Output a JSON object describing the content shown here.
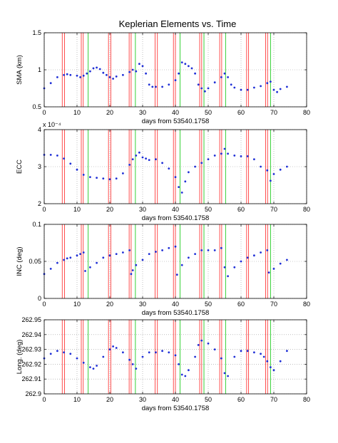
{
  "figure": {
    "title": "Keplerian Elements vs. Time"
  },
  "chart_data": [
    {
      "type": "scatter",
      "ylabel": "SMA (km)",
      "xlabel": "days from 53540.1758",
      "xlim": [
        0,
        80
      ],
      "ylim": [
        0.5,
        1.5
      ],
      "xticks": [
        "0",
        "10",
        "20",
        "30",
        "40",
        "50",
        "60",
        "70",
        "80"
      ],
      "yticks": [
        "0.5",
        "1",
        "1.5"
      ],
      "multiplier": "",
      "grid": true,
      "series": [
        {
          "color": "#1f2fd6",
          "x": [
            0,
            2,
            4,
            6,
            7,
            8,
            10,
            11,
            12,
            13,
            14,
            15,
            16,
            17,
            18,
            19,
            20,
            21,
            22,
            24,
            26,
            27,
            28,
            29,
            30,
            31,
            32,
            33,
            34,
            36,
            38,
            40,
            41,
            42,
            43,
            44,
            45,
            46,
            47,
            48,
            49,
            50,
            52,
            54,
            55,
            56,
            57,
            58,
            60,
            62,
            64,
            66,
            68,
            69,
            70,
            71,
            72,
            74
          ],
          "y": [
            0.75,
            0.82,
            0.9,
            0.93,
            0.94,
            0.93,
            0.92,
            0.9,
            0.92,
            0.95,
            0.98,
            1.02,
            1.03,
            1.01,
            0.96,
            0.93,
            0.9,
            0.88,
            0.91,
            0.93,
            0.97,
            1.0,
            0.98,
            1.08,
            1.05,
            0.95,
            0.8,
            0.77,
            0.77,
            0.77,
            0.8,
            0.86,
            0.95,
            1.1,
            1.08,
            1.05,
            1.02,
            0.95,
            0.8,
            0.75,
            0.71,
            0.75,
            0.83,
            0.9,
            0.95,
            0.9,
            0.8,
            0.76,
            0.73,
            0.73,
            0.76,
            0.78,
            0.82,
            0.84,
            0.73,
            0.7,
            0.74,
            0.77
          ]
        }
      ]
    },
    {
      "type": "scatter",
      "ylabel": "ECC",
      "xlabel": "days from 53540.1758",
      "xlim": [
        0,
        80
      ],
      "ylim": [
        2,
        4
      ],
      "xticks": [
        "0",
        "10",
        "20",
        "30",
        "40",
        "50",
        "60",
        "70",
        "80"
      ],
      "yticks": [
        "2",
        "3",
        "4"
      ],
      "multiplier": "x 10⁻⁴",
      "grid": true,
      "series": [
        {
          "color": "#1f2fd6",
          "x": [
            0,
            2,
            4,
            6,
            8,
            10,
            12,
            14,
            16,
            18,
            20,
            22,
            24,
            26,
            27,
            28,
            29,
            30,
            31,
            32,
            34,
            36,
            38,
            40,
            41,
            42,
            43,
            44,
            46,
            48,
            50,
            52,
            54,
            55,
            56,
            58,
            60,
            62,
            64,
            66,
            68,
            69,
            70,
            72,
            74
          ],
          "y": [
            3.32,
            3.32,
            3.3,
            3.22,
            3.08,
            2.92,
            2.78,
            2.72,
            2.7,
            2.68,
            2.66,
            2.68,
            2.82,
            3.05,
            3.2,
            3.3,
            3.38,
            3.25,
            3.22,
            3.18,
            3.2,
            3.1,
            2.95,
            2.72,
            2.45,
            2.3,
            2.6,
            2.85,
            3.0,
            3.1,
            3.2,
            3.3,
            3.35,
            3.48,
            3.35,
            3.3,
            3.28,
            3.28,
            3.2,
            3.0,
            2.9,
            2.62,
            2.8,
            2.92,
            3.0
          ]
        }
      ]
    },
    {
      "type": "scatter",
      "ylabel": "INC (deg)",
      "xlabel": "days from 53540.1758",
      "xlim": [
        0,
        80
      ],
      "ylim": [
        0,
        0.1
      ],
      "xticks": [
        "0",
        "10",
        "20",
        "30",
        "40",
        "50",
        "60",
        "70",
        "80"
      ],
      "yticks": [
        "0",
        "0.05",
        "0.1"
      ],
      "multiplier": "",
      "grid": true,
      "series": [
        {
          "color": "#1f2fd6",
          "x": [
            0,
            2,
            4,
            6,
            7,
            8,
            10,
            11,
            12,
            12.5,
            14,
            16,
            18,
            20,
            22,
            24,
            26,
            26.5,
            27,
            28,
            30,
            32,
            34,
            36,
            38,
            40,
            40.5,
            42,
            44,
            46,
            48,
            50,
            52,
            54,
            55,
            56,
            58,
            60,
            62,
            64,
            66,
            68,
            68.5,
            70,
            72,
            74
          ],
          "y": [
            0.033,
            0.04,
            0.048,
            0.052,
            0.054,
            0.055,
            0.058,
            0.06,
            0.062,
            0.037,
            0.042,
            0.048,
            0.055,
            0.058,
            0.06,
            0.062,
            0.065,
            0.033,
            0.038,
            0.045,
            0.052,
            0.06,
            0.063,
            0.065,
            0.068,
            0.07,
            0.032,
            0.045,
            0.055,
            0.06,
            0.065,
            0.065,
            0.065,
            0.068,
            0.042,
            0.03,
            0.042,
            0.05,
            0.055,
            0.058,
            0.062,
            0.065,
            0.035,
            0.04,
            0.047,
            0.052
          ]
        }
      ]
    },
    {
      "type": "scatter",
      "ylabel": "Long. (deg)",
      "xlabel": "days from 53540.1758",
      "xlim": [
        0,
        80
      ],
      "ylim": [
        262.9,
        262.95
      ],
      "xticks": [
        "0",
        "10",
        "20",
        "30",
        "40",
        "50",
        "60",
        "70",
        "80"
      ],
      "yticks": [
        "262.9",
        "262.91",
        "262.92",
        "262.93",
        "262.94",
        "262.95"
      ],
      "multiplier": "",
      "grid": true,
      "series": [
        {
          "color": "#1f2fd6",
          "x": [
            0,
            2,
            4,
            6,
            8,
            10,
            12,
            14,
            15,
            16,
            18,
            20,
            21,
            22,
            24,
            26,
            27,
            28,
            30,
            32,
            34,
            36,
            38,
            40,
            41,
            42,
            43,
            44,
            46,
            47,
            48,
            50,
            52,
            54,
            55,
            56,
            58,
            60,
            62,
            64,
            66,
            67,
            68,
            69,
            70,
            72,
            74
          ],
          "y": [
            262.924,
            262.927,
            262.929,
            262.928,
            262.927,
            262.924,
            262.921,
            262.918,
            262.917,
            262.919,
            262.925,
            262.93,
            262.932,
            262.931,
            262.928,
            262.923,
            262.92,
            262.917,
            262.925,
            262.928,
            262.928,
            262.929,
            262.928,
            262.926,
            262.92,
            262.913,
            262.912,
            262.916,
            262.925,
            262.933,
            262.936,
            262.934,
            262.93,
            262.924,
            262.914,
            262.912,
            262.925,
            262.929,
            262.929,
            262.928,
            262.927,
            262.925,
            262.922,
            262.918,
            262.916,
            262.922,
            262.929
          ]
        }
      ]
    }
  ],
  "event_markers": {
    "red_color": "#ff3b3b",
    "green_color": "#22cc22",
    "red_x": [
      5.5,
      6.2,
      11.3,
      11.9,
      19.6,
      20.3,
      25.9,
      26.5,
      33.8,
      34.5,
      39.4,
      40.0,
      47.4,
      48.0,
      53.5,
      54.1,
      61.7,
      62.3,
      67.5,
      68.1
    ],
    "green_x": [
      13.4,
      27.8,
      41.4,
      48.7,
      55.3,
      69.0
    ]
  }
}
